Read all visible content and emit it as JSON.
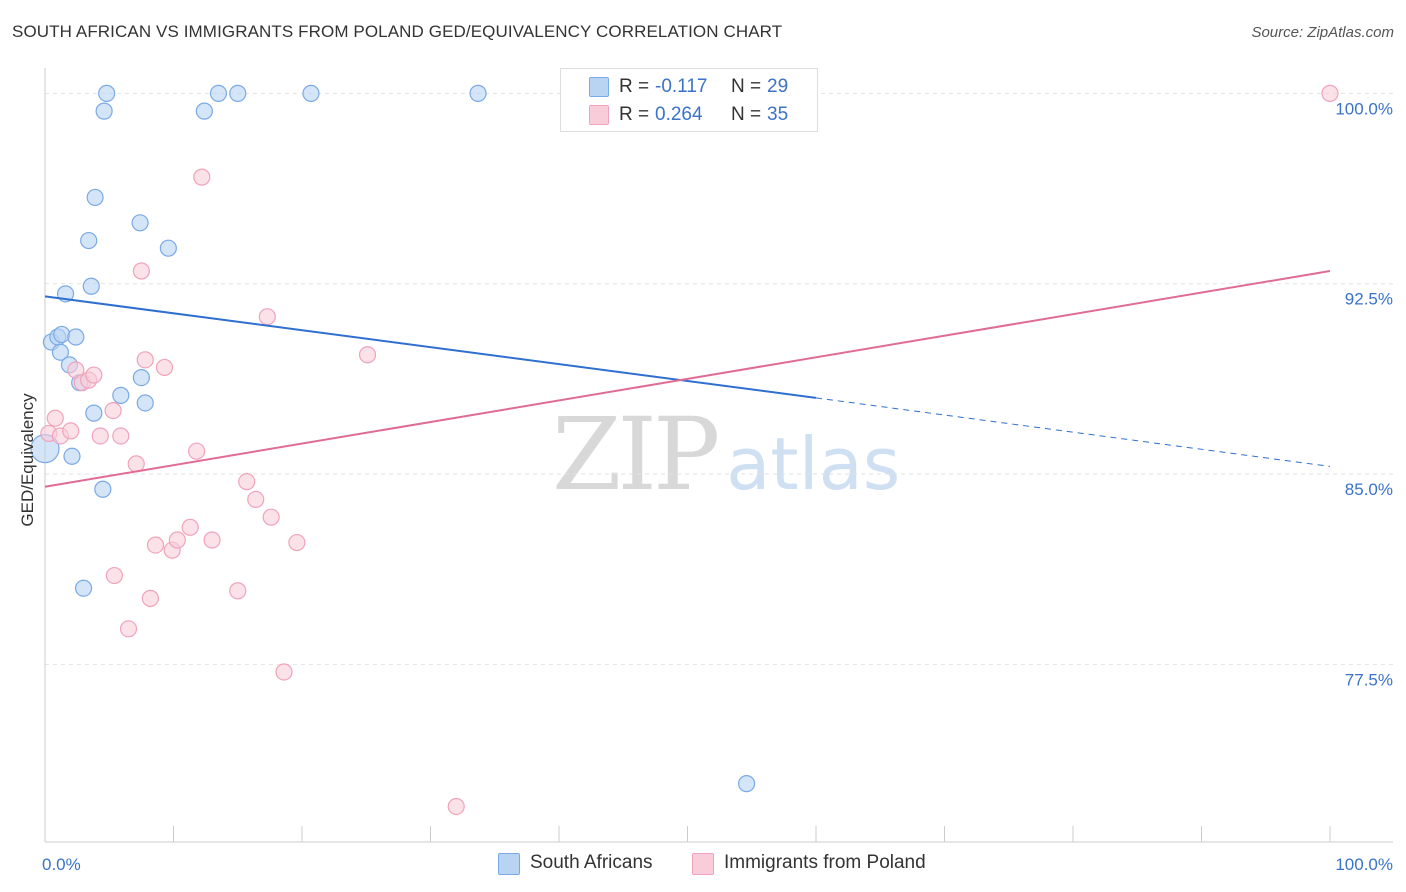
{
  "chart_data": {
    "type": "scatter",
    "title": "SOUTH AFRICAN VS IMMIGRANTS FROM POLAND GED/EQUIVALENCY CORRELATION CHART",
    "source": "Source: ZipAtlas.com",
    "xlabel": "",
    "ylabel": "GED/Equivalency",
    "xlim": [
      0,
      100
    ],
    "ylim": [
      70.5,
      101.0
    ],
    "x_tick_labels": [
      "0.0%",
      "100.0%"
    ],
    "y_ticks": [
      77.5,
      85.0,
      92.5,
      100.0
    ],
    "y_tick_labels": [
      "77.5%",
      "85.0%",
      "92.5%",
      "100.0%"
    ],
    "grid": true,
    "watermark": {
      "zip": "ZIP",
      "atlas": "atlas"
    },
    "series": [
      {
        "name": "South Africans",
        "color": "#7aaae6",
        "fill": "#b9d3f3",
        "line_color": "#2f6fcf",
        "R": "-0.117",
        "N": "29",
        "trend": {
          "x0": 0,
          "y0": 92.0,
          "x1": 60,
          "y1": 88.0,
          "x_dash_end": 100,
          "y_dash_end": 85.3
        },
        "points": [
          [
            0.0,
            86.0
          ],
          [
            0.5,
            90.2
          ],
          [
            1.0,
            90.4
          ],
          [
            1.2,
            89.8
          ],
          [
            1.3,
            90.5
          ],
          [
            1.6,
            92.1
          ],
          [
            1.9,
            89.3
          ],
          [
            2.1,
            85.7
          ],
          [
            2.4,
            90.4
          ],
          [
            2.7,
            88.6
          ],
          [
            3.0,
            80.5
          ],
          [
            3.4,
            94.2
          ],
          [
            3.6,
            92.4
          ],
          [
            3.8,
            87.4
          ],
          [
            3.9,
            95.9
          ],
          [
            4.5,
            84.4
          ],
          [
            4.6,
            99.3
          ],
          [
            4.8,
            100.0
          ],
          [
            5.9,
            88.1
          ],
          [
            7.4,
            94.9
          ],
          [
            7.5,
            88.8
          ],
          [
            7.8,
            87.8
          ],
          [
            9.6,
            93.9
          ],
          [
            12.4,
            99.3
          ],
          [
            13.5,
            100.0
          ],
          [
            15.0,
            100.0
          ],
          [
            20.7,
            100.0
          ],
          [
            33.7,
            100.0
          ],
          [
            54.6,
            72.8
          ]
        ]
      },
      {
        "name": "Immigrants from Poland",
        "color": "#f0a3bd",
        "fill": "#f8cdd9",
        "line_color": "#e06b95",
        "R": "0.264",
        "N": "35",
        "trend": {
          "x0": 0,
          "y0": 84.5,
          "x1": 100,
          "y1": 93.0
        },
        "points": [
          [
            0.3,
            86.6
          ],
          [
            0.8,
            87.2
          ],
          [
            1.2,
            86.5
          ],
          [
            2.0,
            86.7
          ],
          [
            2.4,
            89.1
          ],
          [
            2.9,
            88.6
          ],
          [
            3.4,
            88.7
          ],
          [
            3.8,
            88.9
          ],
          [
            4.3,
            86.5
          ],
          [
            5.3,
            87.5
          ],
          [
            5.4,
            81.0
          ],
          [
            5.9,
            86.5
          ],
          [
            6.5,
            78.9
          ],
          [
            7.1,
            85.4
          ],
          [
            7.5,
            93.0
          ],
          [
            7.8,
            89.5
          ],
          [
            8.2,
            80.1
          ],
          [
            8.6,
            82.2
          ],
          [
            9.3,
            89.2
          ],
          [
            9.9,
            82.0
          ],
          [
            10.3,
            82.4
          ],
          [
            11.3,
            82.9
          ],
          [
            11.8,
            85.9
          ],
          [
            12.2,
            96.7
          ],
          [
            13.0,
            82.4
          ],
          [
            15.0,
            80.4
          ],
          [
            15.7,
            84.7
          ],
          [
            16.4,
            84.0
          ],
          [
            17.3,
            91.2
          ],
          [
            17.6,
            83.3
          ],
          [
            18.6,
            77.2
          ],
          [
            19.6,
            82.3
          ],
          [
            25.1,
            89.7
          ],
          [
            32.0,
            71.9
          ],
          [
            100.0,
            100.0
          ]
        ]
      }
    ]
  }
}
